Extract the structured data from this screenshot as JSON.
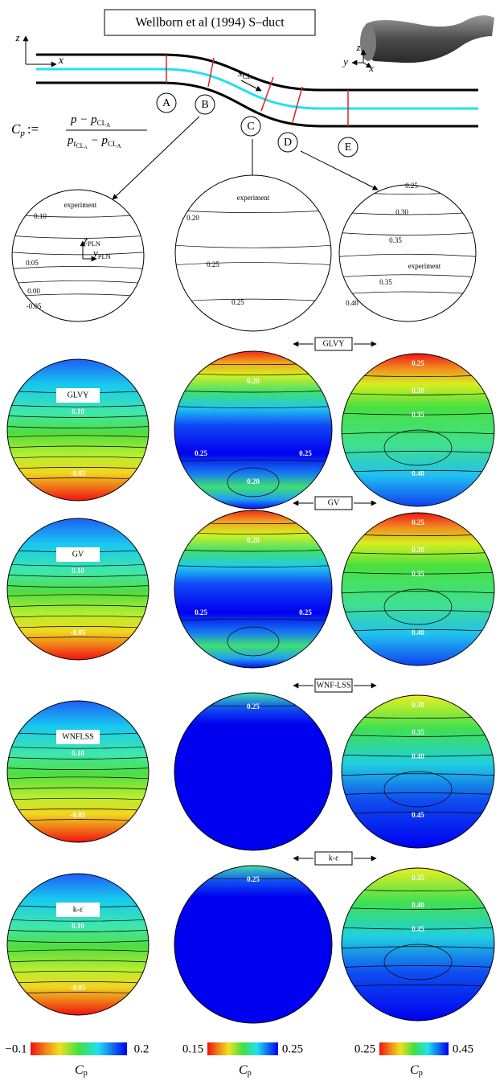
{
  "title": "Wellborn et al (1994) S–duct",
  "duct": {
    "axis_labels": [
      "z",
      "x"
    ],
    "inset_axes": [
      "z",
      "y",
      "x"
    ],
    "centerline_label": {
      "base": "s",
      "sub": "CL"
    },
    "stations": [
      "A",
      "B",
      "C",
      "D",
      "E"
    ]
  },
  "formula": {
    "lhs": "C",
    "lhs_sub": "p",
    "def": ":=",
    "numerator": [
      "p − p",
      "CL",
      "A"
    ],
    "denominator": [
      "p",
      "t",
      "CL",
      "A",
      " − p",
      "CL",
      "A"
    ]
  },
  "experiment": [
    {
      "label": "experiment",
      "axes": [
        {
          "base": "z",
          "sub": "PLN"
        },
        {
          "base": "y",
          "sub": "PLN"
        }
      ],
      "contours": [
        "0.10",
        "0.05",
        "0.00",
        "-0.05"
      ]
    },
    {
      "label": "experiment",
      "contours": [
        "0.20",
        "0.25",
        "0.25"
      ]
    },
    {
      "label": "experiment",
      "contours": [
        "0.25",
        "0.30",
        "0.35",
        "0.35",
        "0.40"
      ]
    }
  ],
  "models": [
    {
      "left_label": "GLVY",
      "arrow_label": "GLVY",
      "left": [
        "0.10",
        "-0.05"
      ],
      "mid": [
        "0.20",
        "0.25",
        "0.25",
        "0.20"
      ],
      "right": [
        "0.25",
        "0.30",
        "0.35",
        "0.40"
      ]
    },
    {
      "left_label": "GV",
      "arrow_label": "GV",
      "left": [
        "0.10",
        "-0.05"
      ],
      "mid": [
        "0.20",
        "0.25",
        "0.25"
      ],
      "right": [
        "0.25",
        "0.30",
        "0.35",
        "0.40"
      ]
    },
    {
      "left_label": "WNFLSS",
      "arrow_label": "WNF-LSS",
      "left": [
        "0.10",
        "-0.05"
      ],
      "mid": [
        "0.25"
      ],
      "right": [
        "0.30",
        "0.35",
        "0.40",
        "0.45"
      ]
    },
    {
      "left_label": "k-ε",
      "arrow_label": "k-ε",
      "left": [
        "0.10",
        "-0.05"
      ],
      "mid": [
        "0.25"
      ],
      "right": [
        "0.35",
        "0.40",
        "0.45"
      ]
    }
  ],
  "colorbars": [
    {
      "min": {
        "value": -0.1,
        "label": "−0.1"
      },
      "max": 0.2,
      "label": {
        "base": "C",
        "sub": "p"
      }
    },
    {
      "min": 0.15,
      "max": 0.25,
      "label": {
        "base": "C",
        "sub": "p"
      }
    },
    {
      "min": 0.25,
      "max": 0.45,
      "label": {
        "base": "C",
        "sub": "p"
      }
    }
  ]
}
